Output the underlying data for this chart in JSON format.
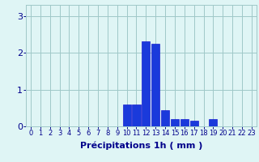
{
  "hours": [
    0,
    1,
    2,
    3,
    4,
    5,
    6,
    7,
    8,
    9,
    10,
    11,
    12,
    13,
    14,
    15,
    16,
    17,
    18,
    19,
    20,
    21,
    22,
    23
  ],
  "values": [
    0,
    0,
    0,
    0,
    0,
    0,
    0,
    0,
    0,
    0,
    0.6,
    0.6,
    2.3,
    2.25,
    0.45,
    0.2,
    0.2,
    0.15,
    0,
    0.2,
    0,
    0,
    0,
    0
  ],
  "bar_color": "#1a3adb",
  "bar_edge_color": "#0000cc",
  "background_color": "#dff5f5",
  "grid_color": "#a0c8c8",
  "xlabel": "Précipitations 1h ( mm )",
  "xlabel_color": "#00008b",
  "xlabel_fontsize": 8,
  "tick_color": "#00008b",
  "tick_fontsize": 6,
  "ytick_fontsize": 8,
  "yticks": [
    0,
    1,
    2,
    3
  ],
  "ylim": [
    0,
    3.3
  ],
  "xlim": [
    -0.5,
    23.5
  ],
  "figsize": [
    3.2,
    2.0
  ],
  "dpi": 100
}
